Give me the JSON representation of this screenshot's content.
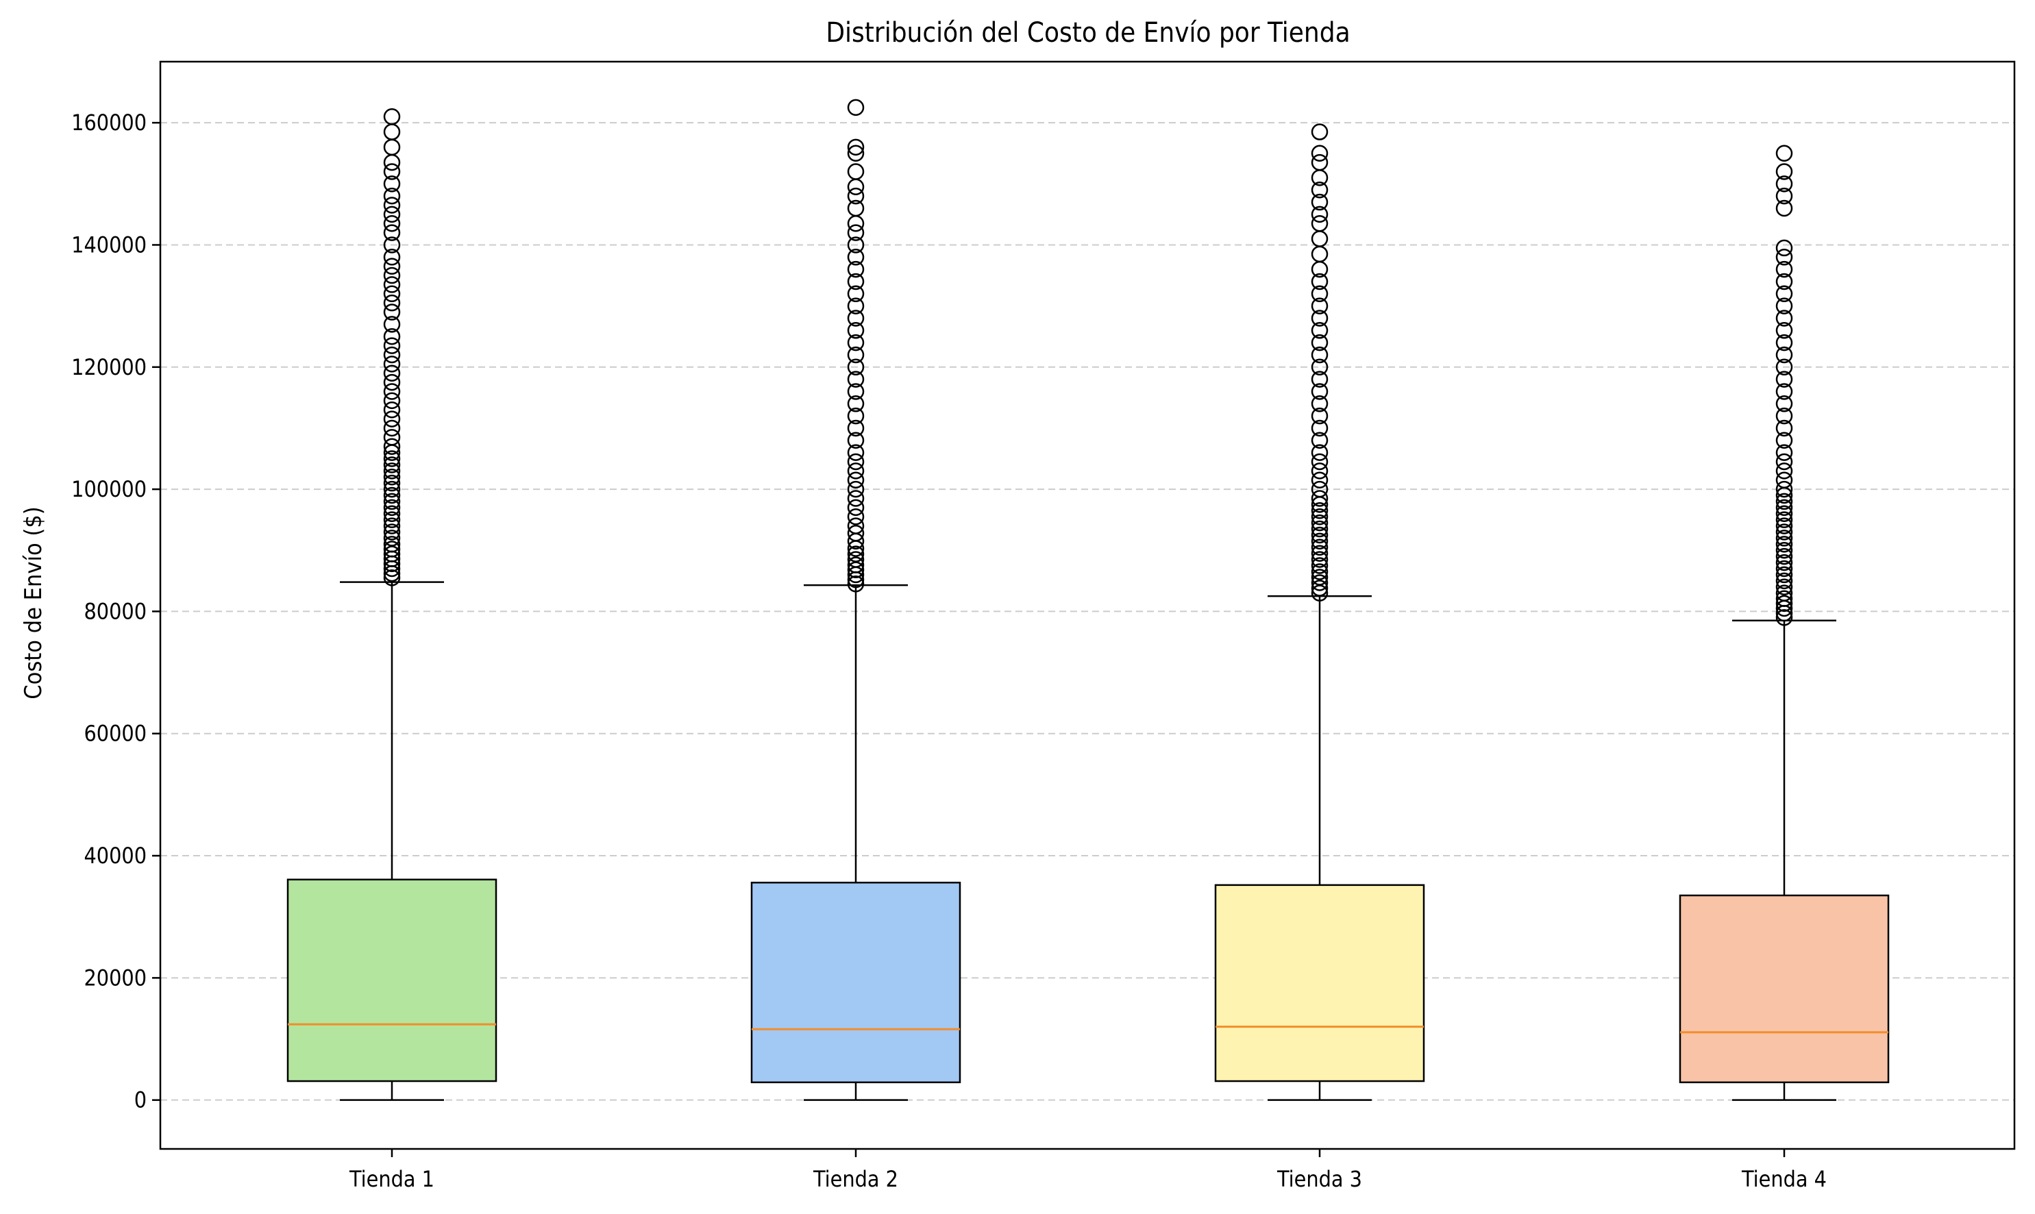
{
  "chart_data": {
    "type": "box",
    "title": "Distribución del Costo de Envío por Tienda",
    "xlabel": "",
    "ylabel": "Costo de Envío ($)",
    "ylim": [
      -8000,
      170000
    ],
    "yticks": [
      0,
      20000,
      40000,
      60000,
      80000,
      100000,
      120000,
      140000,
      160000
    ],
    "grid": {
      "y": true,
      "x": false,
      "style": "dashed",
      "color": "#cccccc"
    },
    "median_color": "#f28e2b",
    "categories": [
      "Tienda 1",
      "Tienda 2",
      "Tienda 3",
      "Tienda 4"
    ],
    "boxes": [
      {
        "name": "Tienda 1",
        "color": "#b3e59f",
        "whisker_low": 0,
        "q1": 3100,
        "median": 12400,
        "q3": 36100,
        "whisker_high": 84800,
        "outliers": [
          85500,
          86200,
          87000,
          87800,
          88600,
          89400,
          90200,
          91000,
          92000,
          93000,
          94000,
          95000,
          96000,
          97000,
          98000,
          99000,
          100000,
          101000,
          102000,
          103000,
          104000,
          105000,
          106000,
          107000,
          108500,
          110000,
          111500,
          113000,
          114500,
          116000,
          117500,
          119000,
          120500,
          122000,
          123500,
          125000,
          127000,
          129000,
          130500,
          132000,
          133500,
          135000,
          136500,
          138000,
          140000,
          142000,
          143500,
          145000,
          146500,
          148000,
          150000,
          152000,
          153500,
          156000,
          158500,
          161000
        ]
      },
      {
        "name": "Tienda 2",
        "color": "#a2c8f4",
        "whisker_low": 0,
        "q1": 2900,
        "median": 11600,
        "q3": 35600,
        "whisker_high": 84300,
        "outliers": [
          84500,
          85200,
          86000,
          86800,
          87600,
          88500,
          89400,
          90300,
          91500,
          92800,
          94000,
          95500,
          97000,
          98500,
          100000,
          101500,
          103000,
          104500,
          106000,
          108000,
          110000,
          112000,
          114000,
          116000,
          118000,
          120000,
          122000,
          124000,
          126000,
          128000,
          130000,
          132000,
          134000,
          136000,
          138000,
          140000,
          142000,
          143500,
          146000,
          148000,
          149500,
          152000,
          155000,
          156000,
          162500
        ]
      },
      {
        "name": "Tienda 3",
        "color": "#fef3b0",
        "whisker_low": 0,
        "q1": 3100,
        "median": 12000,
        "q3": 35200,
        "whisker_high": 82500,
        "outliers": [
          83000,
          83800,
          84700,
          85600,
          86500,
          87500,
          88500,
          89500,
          90500,
          91500,
          92500,
          93500,
          94500,
          95500,
          96500,
          97500,
          98500,
          100000,
          101500,
          103000,
          104500,
          106000,
          108000,
          110000,
          112000,
          114000,
          116000,
          118000,
          120000,
          122000,
          124000,
          126000,
          128000,
          130000,
          132000,
          134000,
          136000,
          138500,
          141000,
          143500,
          145000,
          147000,
          149000,
          151000,
          153500,
          155000,
          158500
        ]
      },
      {
        "name": "Tienda 4",
        "color": "#f8c3a6",
        "whisker_low": 0,
        "q1": 2900,
        "median": 11100,
        "q3": 33500,
        "whisker_high": 78500,
        "outliers": [
          79000,
          79700,
          80500,
          81300,
          82100,
          83000,
          84000,
          85000,
          86000,
          87000,
          88000,
          89000,
          90000,
          91000,
          92000,
          93000,
          94000,
          95000,
          96000,
          97000,
          98000,
          99000,
          100000,
          101500,
          103000,
          104500,
          106000,
          108000,
          110000,
          112000,
          114000,
          116000,
          118000,
          120000,
          122000,
          124000,
          126000,
          128000,
          130000,
          132000,
          134000,
          136000,
          138000,
          139500,
          146000,
          148000,
          150000,
          152000,
          155000
        ]
      }
    ]
  }
}
